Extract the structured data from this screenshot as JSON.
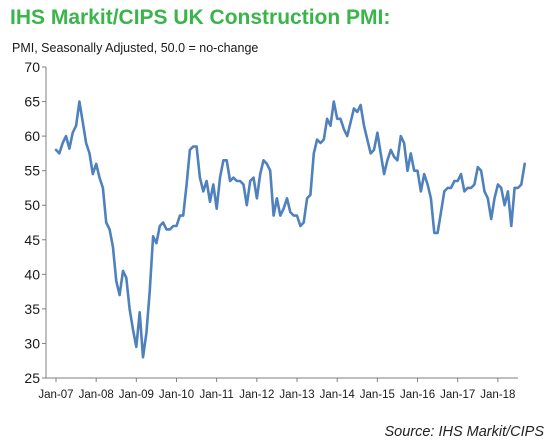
{
  "title": "IHS Markit/CIPS UK Construction PMI:",
  "subtitle": "PMI, Seasonally Adjusted, 50.0 = no-change",
  "source": "Source: IHS Markit/CIPS",
  "colors": {
    "title": "#39b54a",
    "line": "#4f81bd"
  },
  "chart_data": {
    "type": "line",
    "title": "IHS Markit/CIPS UK Construction PMI:",
    "subtitle": "PMI, Seasonally Adjusted, 50.0 = no-change",
    "xlabel": "",
    "ylabel": "",
    "ylim": [
      25,
      70
    ],
    "yticks": [
      25,
      30,
      35,
      40,
      45,
      50,
      55,
      60,
      65,
      70
    ],
    "xticks": [
      "Jan-07",
      "Jan-08",
      "Jan-09",
      "Jan-10",
      "Jan-11",
      "Jan-12",
      "Jan-13",
      "Jan-14",
      "Jan-15",
      "Jan-16",
      "Jan-17",
      "Jan-18"
    ],
    "grid": false,
    "legend": "none",
    "start": "Jan-07",
    "series": [
      {
        "values": [
          58.0,
          57.5,
          59.0,
          60.0,
          58.2,
          60.5,
          61.5,
          65.0,
          62.0,
          59.0,
          57.5,
          54.5,
          56.0,
          54.0,
          52.5,
          47.5,
          46.5,
          44.0,
          39.0,
          37.0,
          40.5,
          39.5,
          35.0,
          32.0,
          29.5,
          34.5,
          28.0,
          31.5,
          37.5,
          45.5,
          44.5,
          47.0,
          47.5,
          46.5,
          46.5,
          47.0,
          47.0,
          48.5,
          48.5,
          53.0,
          58.0,
          58.5,
          58.5,
          54.0,
          52.0,
          53.5,
          50.5,
          53.0,
          49.5,
          54.0,
          56.5,
          56.5,
          53.5,
          54.0,
          53.5,
          53.5,
          53.0,
          50.0,
          53.5,
          54.0,
          51.0,
          54.5,
          56.5,
          56.0,
          55.0,
          48.5,
          51.0,
          48.5,
          49.5,
          51.0,
          49.0,
          48.5,
          48.5,
          47.0,
          47.5,
          51.0,
          51.5,
          57.5,
          59.5,
          59.0,
          59.5,
          62.5,
          61.5,
          65.0,
          62.5,
          62.5,
          61.0,
          60.0,
          62.0,
          64.0,
          63.5,
          64.5,
          61.5,
          59.5,
          57.5,
          58.0,
          60.5,
          57.5,
          54.5,
          56.5,
          58.0,
          57.0,
          56.5,
          60.0,
          59.0,
          55.0,
          57.5,
          55.0,
          55.0,
          52.0,
          54.5,
          53.0,
          51.0,
          46.0,
          46.0,
          49.0,
          52.0,
          52.5,
          52.5,
          53.5,
          53.5,
          54.5,
          52.0,
          52.5,
          52.5,
          53.0,
          55.5,
          55.0,
          52.0,
          51.0,
          48.0,
          51.0,
          53.0,
          52.5,
          50.0,
          52.0,
          47.0,
          52.5,
          52.5,
          53.0,
          56.0
        ]
      }
    ]
  }
}
